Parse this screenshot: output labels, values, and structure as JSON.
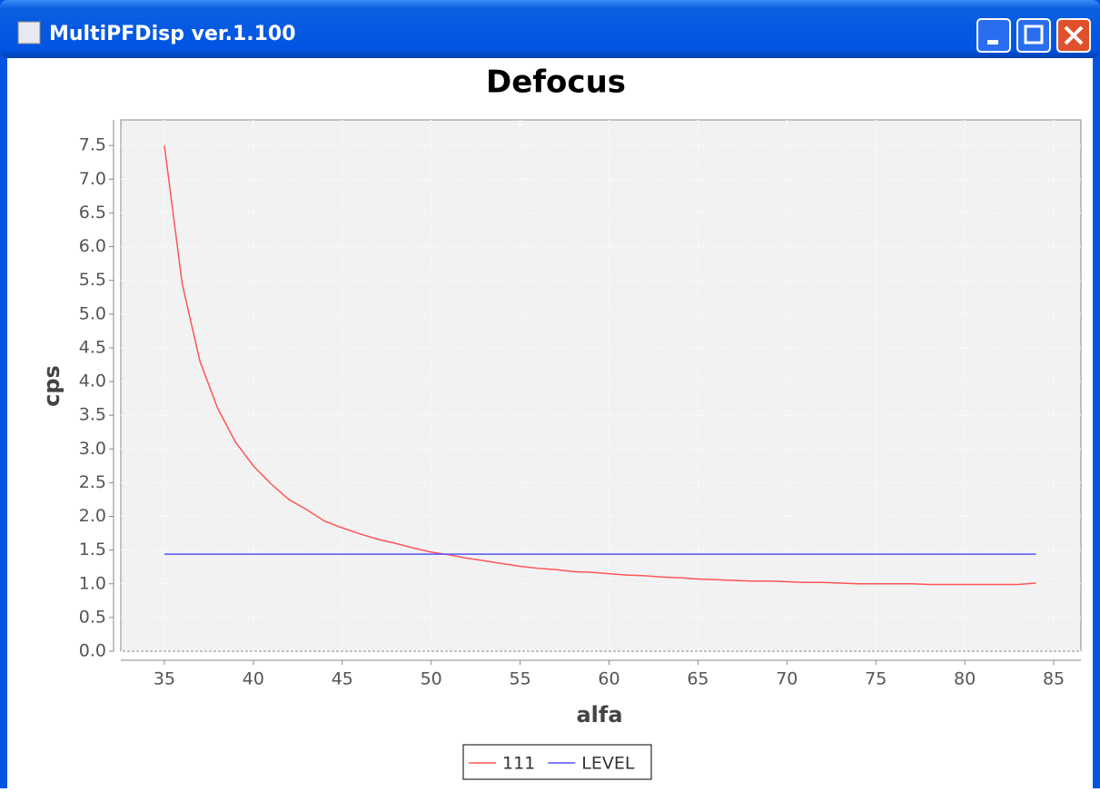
{
  "window": {
    "title": "MultiPFDisp ver.1.100"
  },
  "chart_data": {
    "type": "line",
    "title": "Defocus",
    "x_label": "alfa",
    "y_label": "cps",
    "x": [
      35,
      36,
      37,
      38,
      39,
      40,
      41,
      42,
      43,
      44,
      45,
      46,
      47,
      48,
      49,
      50,
      51,
      52,
      53,
      54,
      55,
      56,
      57,
      58,
      59,
      60,
      61,
      62,
      63,
      64,
      65,
      66,
      67,
      68,
      69,
      70,
      71,
      72,
      73,
      74,
      75,
      76,
      77,
      78,
      79,
      80,
      81,
      82,
      83,
      84
    ],
    "series": [
      {
        "name": "111",
        "color": "#ff5555",
        "values": [
          7.5,
          5.45,
          4.3,
          3.6,
          3.1,
          2.75,
          2.48,
          2.25,
          2.1,
          1.93,
          1.83,
          1.74,
          1.66,
          1.6,
          1.53,
          1.47,
          1.43,
          1.38,
          1.34,
          1.3,
          1.26,
          1.23,
          1.21,
          1.18,
          1.17,
          1.15,
          1.13,
          1.12,
          1.1,
          1.09,
          1.07,
          1.06,
          1.05,
          1.04,
          1.04,
          1.03,
          1.02,
          1.02,
          1.01,
          1.0,
          1.0,
          1.0,
          1.0,
          0.99,
          0.99,
          0.99,
          0.99,
          0.99,
          0.99,
          1.01
        ]
      },
      {
        "name": "LEVEL",
        "color": "#5555ff",
        "values": [
          1.44,
          1.44,
          1.44,
          1.44,
          1.44,
          1.44,
          1.44,
          1.44,
          1.44,
          1.44,
          1.44,
          1.44,
          1.44,
          1.44,
          1.44,
          1.44,
          1.44,
          1.44,
          1.44,
          1.44,
          1.44,
          1.44,
          1.44,
          1.44,
          1.44,
          1.44,
          1.44,
          1.44,
          1.44,
          1.44,
          1.44,
          1.44,
          1.44,
          1.44,
          1.44,
          1.44,
          1.44,
          1.44,
          1.44,
          1.44,
          1.44,
          1.44,
          1.44,
          1.44,
          1.44,
          1.44,
          1.44,
          1.44,
          1.44,
          1.44
        ]
      }
    ],
    "xlim": [
      32.55,
      86.53
    ],
    "xticks": [
      35,
      40,
      45,
      50,
      55,
      60,
      65,
      70,
      75,
      80,
      85
    ],
    "ylim": [
      0,
      7.88
    ],
    "yticks": [
      {
        "value": 0,
        "label": "0.0"
      },
      {
        "value": 0.5,
        "label": "0.5"
      },
      {
        "value": 1,
        "label": "1.0"
      },
      {
        "value": 1.5,
        "label": "1.5"
      },
      {
        "value": 2,
        "label": "2.0"
      },
      {
        "value": 2.5,
        "label": "2.5"
      },
      {
        "value": 3,
        "label": "3.0"
      },
      {
        "value": 3.5,
        "label": "3.5"
      },
      {
        "value": 4,
        "label": "4.0"
      },
      {
        "value": 4.5,
        "label": "4.5"
      },
      {
        "value": 5,
        "label": "5.0"
      },
      {
        "value": 5.5,
        "label": "5.5"
      },
      {
        "value": 6,
        "label": "6.0"
      },
      {
        "value": 6.5,
        "label": "6.5"
      },
      {
        "value": 7,
        "label": "7.0"
      },
      {
        "value": 7.5,
        "label": "7.5"
      }
    ],
    "grid": true,
    "legend": "bottom"
  }
}
